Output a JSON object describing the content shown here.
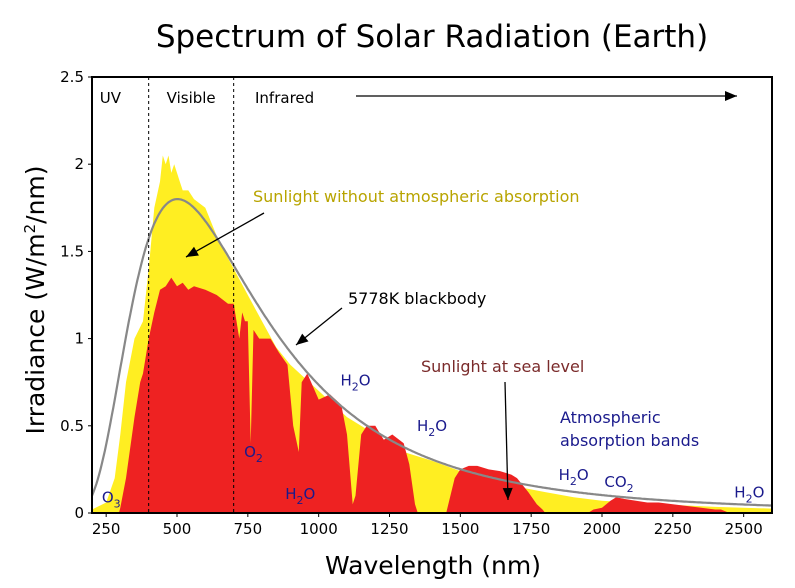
{
  "chart_data": {
    "type": "area",
    "title": "Spectrum of Solar Radiation (Earth)",
    "xlabel": "Wavelength (nm)",
    "ylabel_parts": [
      "Irradiance (W/m",
      "2",
      "/nm)"
    ],
    "xlim": [
      200,
      2600
    ],
    "ylim": [
      0,
      2.5
    ],
    "x_ticks": [
      250,
      500,
      750,
      1000,
      1250,
      1500,
      1750,
      2000,
      2250,
      2500
    ],
    "y_ticks": [
      {
        "value": 0,
        "label": "0"
      },
      {
        "value": 0.5,
        "label": "0.5"
      },
      {
        "value": 1,
        "label": "1"
      },
      {
        "value": 1.5,
        "label": "1.5"
      },
      {
        "value": 2,
        "label": "2"
      },
      {
        "value": 2.5,
        "label": "2.5"
      }
    ],
    "grid": false,
    "colors": {
      "top_of_atmosphere": "#ffee22",
      "sea_level": "#ee2222",
      "blackbody": "#888888"
    },
    "region_dividers": [
      400,
      700
    ],
    "regions": [
      {
        "label": "UV",
        "x": 265
      },
      {
        "label": "Visible",
        "x": 550
      },
      {
        "label": "Infrared",
        "x": 835
      }
    ],
    "series": [
      {
        "key": "top_of_atmosphere",
        "x": [
          200,
          250,
          280,
          300,
          320,
          350,
          380,
          400,
          420,
          440,
          450,
          460,
          470,
          480,
          490,
          500,
          510,
          520,
          540,
          560,
          600,
          650,
          700,
          750,
          800,
          850,
          900,
          1000,
          1100,
          1200,
          1300,
          1400,
          1500,
          1600,
          1700,
          1800,
          1900,
          2000,
          2200,
          2400,
          2600
        ],
        "y": [
          0.02,
          0.06,
          0.2,
          0.45,
          0.75,
          1.0,
          1.1,
          1.4,
          1.75,
          1.9,
          2.05,
          2.0,
          2.05,
          1.95,
          2.0,
          1.95,
          1.9,
          1.85,
          1.85,
          1.8,
          1.75,
          1.55,
          1.4,
          1.25,
          1.1,
          0.95,
          0.85,
          0.7,
          0.55,
          0.45,
          0.35,
          0.3,
          0.24,
          0.2,
          0.15,
          0.12,
          0.09,
          0.07,
          0.05,
          0.035,
          0.025
        ]
      },
      {
        "key": "sea_level",
        "x": [
          280,
          295,
          300,
          320,
          350,
          370,
          380,
          400,
          420,
          440,
          460,
          480,
          500,
          520,
          540,
          560,
          600,
          640,
          680,
          700,
          720,
          730,
          740,
          750,
          760,
          770,
          790,
          810,
          830,
          860,
          890,
          910,
          930,
          940,
          960,
          1000,
          1040,
          1080,
          1100,
          1120,
          1130,
          1150,
          1170,
          1200,
          1230,
          1260,
          1300,
          1320,
          1340,
          1350,
          1380,
          1420,
          1450,
          1480,
          1500,
          1530,
          1560,
          1600,
          1640,
          1680,
          1700,
          1740,
          1770,
          1790,
          1800,
          1830,
          1900,
          1950,
          1970,
          2000,
          2030,
          2050,
          2080,
          2120,
          2160,
          2200,
          2250,
          2300,
          2350,
          2400,
          2420,
          2450,
          2500,
          2550,
          2600
        ],
        "y": [
          0,
          0,
          0.03,
          0.2,
          0.55,
          0.75,
          0.8,
          1.0,
          1.15,
          1.28,
          1.3,
          1.35,
          1.3,
          1.32,
          1.28,
          1.3,
          1.28,
          1.25,
          1.2,
          1.2,
          1.0,
          1.15,
          1.1,
          1.1,
          0.4,
          1.05,
          1.0,
          1.0,
          1.0,
          0.92,
          0.85,
          0.5,
          0.35,
          0.75,
          0.8,
          0.65,
          0.68,
          0.62,
          0.45,
          0.05,
          0.1,
          0.45,
          0.5,
          0.5,
          0.42,
          0.45,
          0.4,
          0.28,
          0.05,
          0,
          0,
          0,
          0,
          0.2,
          0.25,
          0.27,
          0.27,
          0.25,
          0.24,
          0.22,
          0.2,
          0.12,
          0.05,
          0.02,
          0,
          0,
          0,
          0,
          0.02,
          0.03,
          0.07,
          0.09,
          0.08,
          0.07,
          0.06,
          0.06,
          0.05,
          0.04,
          0.03,
          0.02,
          0.02,
          0,
          0,
          0,
          0
        ]
      },
      {
        "key": "blackbody",
        "formula": "planck",
        "temperature_K": 5778,
        "peak_irradiance": 1.8,
        "label": "5778K blackbody"
      }
    ],
    "annotations": [
      {
        "key": "top_of_atmosphere",
        "text": "Sunlight without atmospheric absorption"
      },
      {
        "key": "blackbody",
        "text": "5778K blackbody"
      },
      {
        "key": "sea_level",
        "text": "Sunlight at sea level"
      },
      {
        "key": "bands_line1",
        "text": "Atmospheric"
      },
      {
        "key": "bands_line2",
        "text": "absorption bands"
      }
    ],
    "absorption_bands": [
      {
        "molecule": "O",
        "sub": "3",
        "x": 268,
        "y": 0.06
      },
      {
        "molecule": "O",
        "sub": "2",
        "x": 770,
        "y": 0.32
      },
      {
        "molecule": "H",
        "sub": "2",
        "tail": "O",
        "x": 935,
        "y": 0.08
      },
      {
        "molecule": "H",
        "sub": "2",
        "tail": "O",
        "x": 1130,
        "y": 0.73
      },
      {
        "molecule": "H",
        "sub": "2",
        "tail": "O",
        "x": 1400,
        "y": 0.47
      },
      {
        "molecule": "H",
        "sub": "2",
        "tail": "O",
        "x": 1900,
        "y": 0.19
      },
      {
        "molecule": "CO",
        "sub": "2",
        "x": 2060,
        "y": 0.15
      },
      {
        "molecule": "H",
        "sub": "2",
        "tail": "O",
        "x": 2520,
        "y": 0.09
      }
    ]
  }
}
